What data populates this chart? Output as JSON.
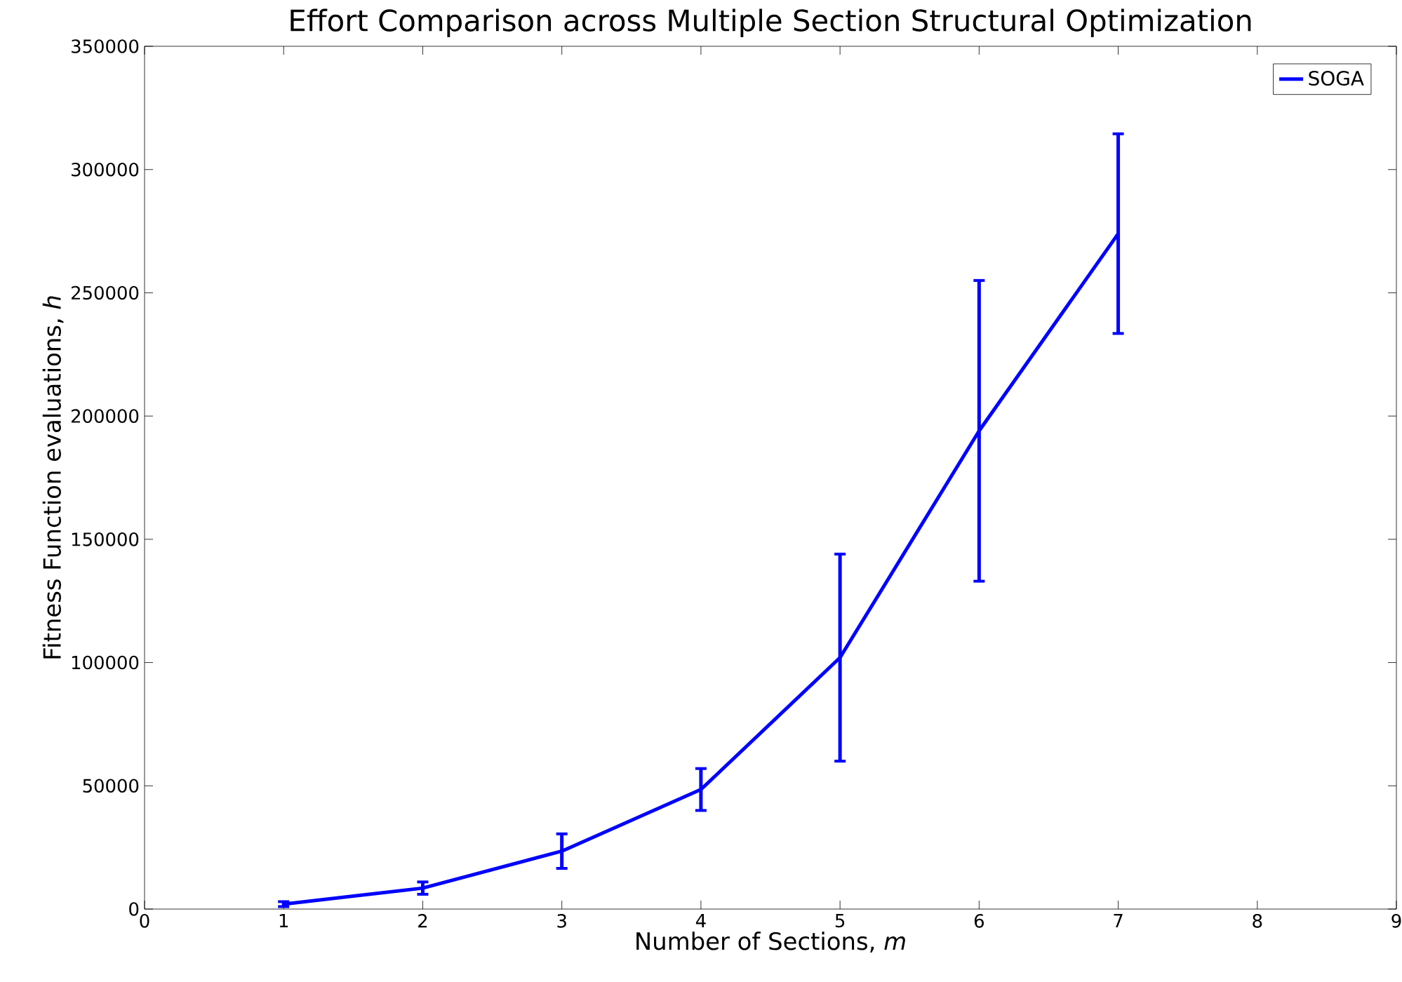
{
  "chart_data": {
    "type": "line",
    "title": "Effort Comparison across Multiple Section Structural Optimization",
    "xlabel": "Number of Sections, *m*",
    "ylabel": "Fitness Function evaluations, *h*",
    "x": [
      1,
      2,
      3,
      4,
      5,
      6,
      7
    ],
    "series": [
      {
        "name": "SOGA",
        "color": "#0000ff",
        "values": [
          2000,
          8500,
          23500,
          48500,
          102000,
          194000,
          274000
        ],
        "errors": [
          1000,
          2500,
          7000,
          8500,
          42000,
          61000,
          40500
        ]
      }
    ],
    "xlim": [
      0,
      9
    ],
    "xticks": [
      0,
      1,
      2,
      3,
      4,
      5,
      6,
      7,
      8,
      9
    ],
    "ylim": [
      0,
      350000
    ],
    "yticks": [
      0,
      50000,
      100000,
      150000,
      200000,
      250000,
      300000,
      350000
    ],
    "grid": false,
    "legend": "top right",
    "marker": "none",
    "line_style": "solid"
  }
}
